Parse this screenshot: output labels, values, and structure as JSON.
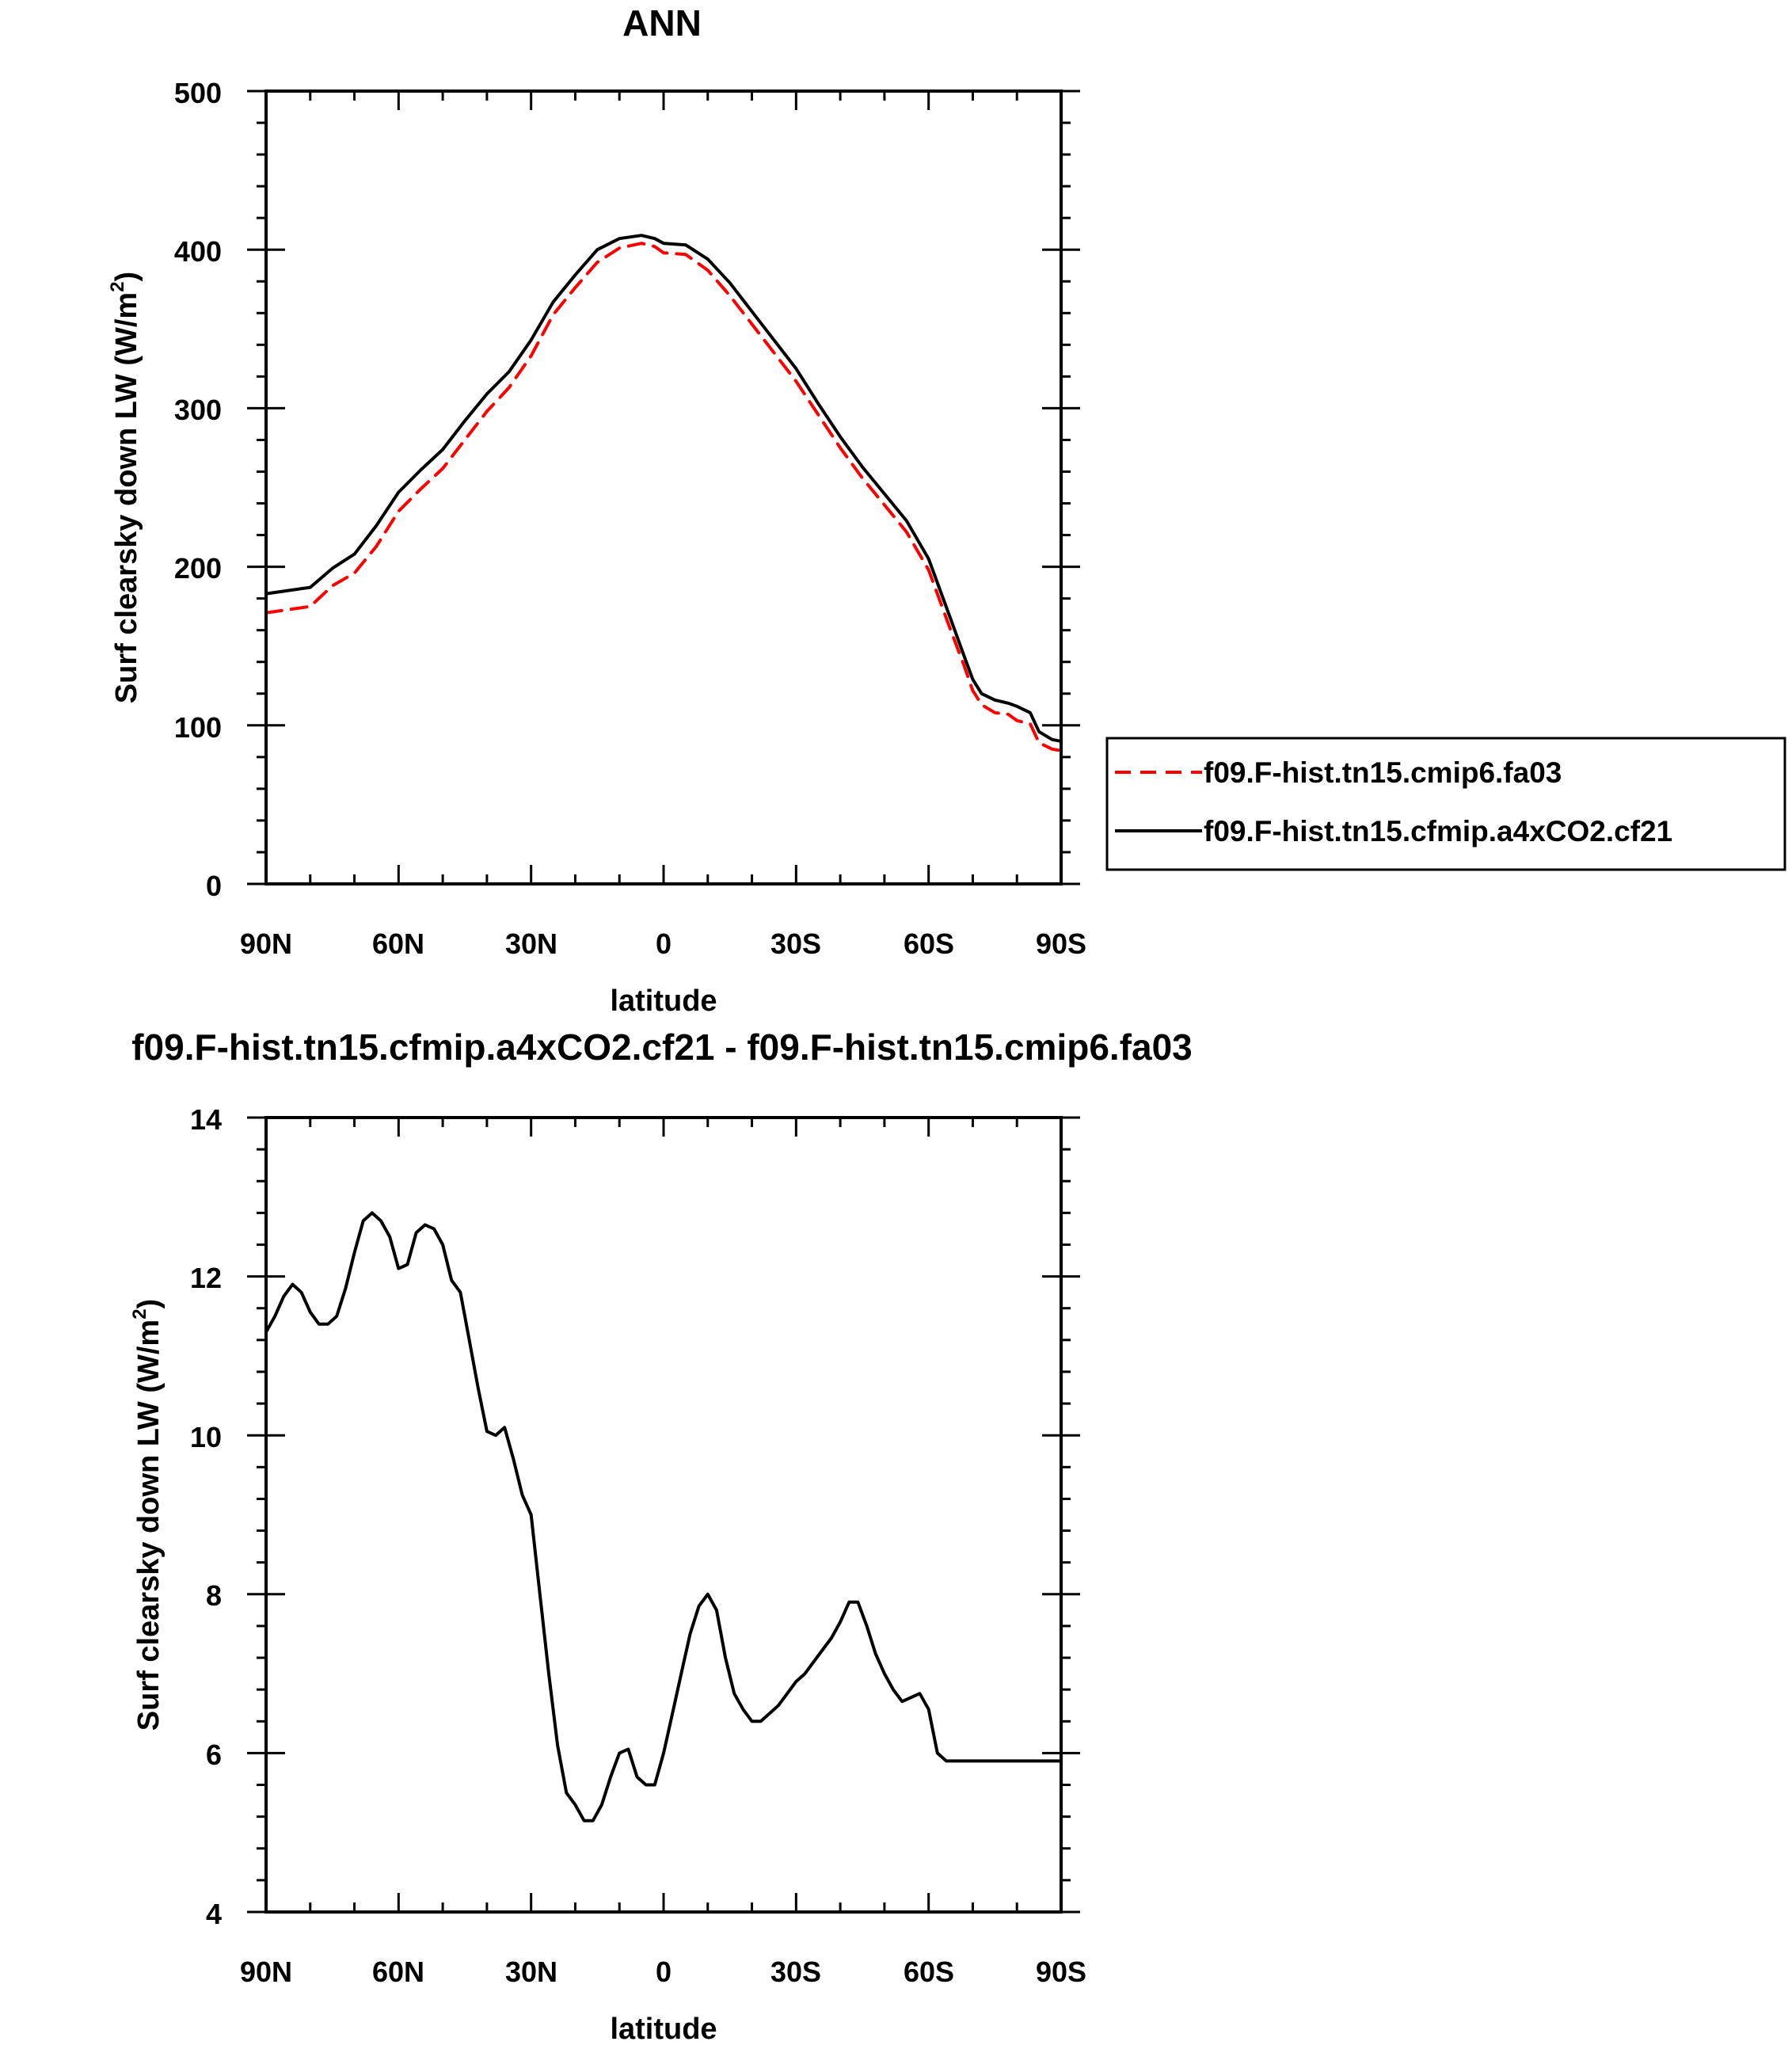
{
  "chart_data": [
    {
      "type": "line",
      "title": "ANN",
      "xlabel": "latitude",
      "ylabel": "Surf clearsky down LW (W/m²)",
      "ylabel_main": "Surf clearsky down LW (W/m",
      "ylabel_sup": "2",
      "ylabel_end": ")",
      "xlim": [
        90,
        -90
      ],
      "ylim": [
        0,
        500
      ],
      "x_ticks": [
        90,
        60,
        30,
        0,
        -30,
        -60,
        -90
      ],
      "x_tick_labels": [
        "90N",
        "60N",
        "30N",
        "0",
        "30S",
        "60S",
        "90S"
      ],
      "y_ticks": [
        0,
        100,
        200,
        300,
        400,
        500
      ],
      "y_tick_labels": [
        "0",
        "100",
        "200",
        "300",
        "400",
        "500"
      ],
      "grid": false,
      "legend_position": "right",
      "series": [
        {
          "name": "f09.F-hist.tn15.cmip6.fa03",
          "color": "#ff0000",
          "dash": "dashed",
          "x": [
            90,
            85,
            80,
            75,
            70,
            65,
            60,
            55,
            50,
            45,
            40,
            35,
            30,
            25,
            20,
            15,
            10,
            5,
            2,
            0,
            -5,
            -10,
            -15,
            -20,
            -25,
            -30,
            -35,
            -40,
            -45,
            -50,
            -55,
            -60,
            -65,
            -68,
            -70,
            -72,
            -75,
            -78,
            -80,
            -83,
            -85,
            -88,
            -90
          ],
          "y": [
            171,
            173,
            175,
            188,
            196,
            213,
            235,
            249,
            262,
            280,
            298,
            313,
            333,
            359,
            376,
            392,
            401,
            404,
            402,
            398,
            397,
            387,
            371,
            353,
            335,
            317,
            296,
            275,
            256,
            239,
            222,
            198,
            160,
            138,
            122,
            113,
            108,
            107,
            103,
            101,
            89,
            85,
            84
          ]
        },
        {
          "name": "f09.F-hist.tn15.cfmip.a4xCO2.cf21",
          "color": "#000000",
          "dash": "solid",
          "x": [
            90,
            85,
            80,
            75,
            70,
            65,
            60,
            55,
            50,
            45,
            40,
            35,
            30,
            25,
            20,
            15,
            10,
            5,
            2,
            0,
            -5,
            -10,
            -15,
            -20,
            -25,
            -30,
            -35,
            -40,
            -45,
            -50,
            -55,
            -60,
            -65,
            -68,
            -70,
            -72,
            -75,
            -78,
            -80,
            -83,
            -85,
            -88,
            -90
          ],
          "y": [
            183,
            185,
            187,
            199,
            208,
            226,
            247,
            261,
            274,
            292,
            309,
            323,
            343,
            367,
            384,
            400,
            407,
            409,
            407,
            404,
            403,
            394,
            379,
            361,
            343,
            325,
            303,
            282,
            263,
            246,
            229,
            205,
            167,
            144,
            129,
            120,
            116,
            114,
            112,
            108,
            96,
            91,
            90
          ]
        }
      ]
    },
    {
      "type": "line",
      "title": "f09.F-hist.tn15.cfmip.a4xCO2.cf21 - f09.F-hist.tn15.cmip6.fa03",
      "xlabel": "latitude",
      "ylabel": "Surf clearsky down LW (W/m²)",
      "ylabel_main": "Surf clearsky down LW (W/m",
      "ylabel_sup": "2",
      "ylabel_end": ")",
      "xlim": [
        90,
        -90
      ],
      "ylim": [
        4,
        14
      ],
      "x_ticks": [
        90,
        60,
        30,
        0,
        -30,
        -60,
        -90
      ],
      "x_tick_labels": [
        "90N",
        "60N",
        "30N",
        "0",
        "30S",
        "60S",
        "90S"
      ],
      "y_ticks": [
        4,
        6,
        8,
        10,
        12,
        14
      ],
      "y_tick_labels": [
        "4",
        "6",
        "8",
        "10",
        "12",
        "14"
      ],
      "grid": false,
      "series": [
        {
          "color": "#000000",
          "dash": "solid",
          "x": [
            90,
            88,
            86,
            84,
            82,
            80,
            78,
            76,
            74,
            72,
            70,
            68,
            66,
            64,
            62,
            60,
            58,
            56,
            54,
            52,
            50,
            48,
            46,
            44,
            42,
            40,
            38,
            36,
            34,
            32,
            30,
            28,
            26,
            24,
            22,
            20,
            18,
            16,
            14,
            12,
            10,
            8,
            6,
            4,
            2,
            0,
            -2,
            -4,
            -6,
            -8,
            -10,
            -12,
            -14,
            -16,
            -18,
            -20,
            -22,
            -24,
            -26,
            -28,
            -30,
            -32,
            -34,
            -36,
            -38,
            -40,
            -42,
            -44,
            -46,
            -48,
            -50,
            -52,
            -54,
            -56,
            -58,
            -60,
            -62,
            -64,
            -66,
            -68,
            -70,
            -72,
            -74,
            -76,
            -78,
            -80,
            -82,
            -84,
            -86,
            -88,
            -90
          ],
          "y": [
            11.3,
            11.5,
            11.75,
            11.9,
            11.8,
            11.55,
            11.4,
            11.4,
            11.5,
            11.85,
            12.3,
            12.7,
            12.8,
            12.7,
            12.5,
            12.1,
            12.15,
            12.55,
            12.65,
            12.6,
            12.4,
            11.95,
            11.8,
            11.2,
            10.6,
            10.05,
            10.0,
            10.1,
            9.7,
            9.25,
            9.0,
            8.0,
            7.0,
            6.1,
            5.5,
            5.35,
            5.15,
            5.15,
            5.35,
            5.7,
            6.0,
            6.05,
            5.7,
            5.6,
            5.6,
            6.0,
            6.5,
            7.0,
            7.5,
            7.85,
            8.0,
            7.8,
            7.2,
            6.75,
            6.55,
            6.4,
            6.4,
            6.5,
            6.6,
            6.75,
            6.9,
            7.0,
            7.15,
            7.3,
            7.45,
            7.65,
            7.9,
            7.9,
            7.6,
            7.25,
            7.0,
            6.8,
            6.65,
            6.7,
            6.75,
            6.55,
            6.0,
            5.9,
            5.9,
            5.9,
            5.9,
            5.9,
            5.9,
            5.9,
            5.9,
            5.9,
            5.9,
            5.9,
            5.9,
            5.9,
            5.9
          ]
        }
      ]
    }
  ]
}
